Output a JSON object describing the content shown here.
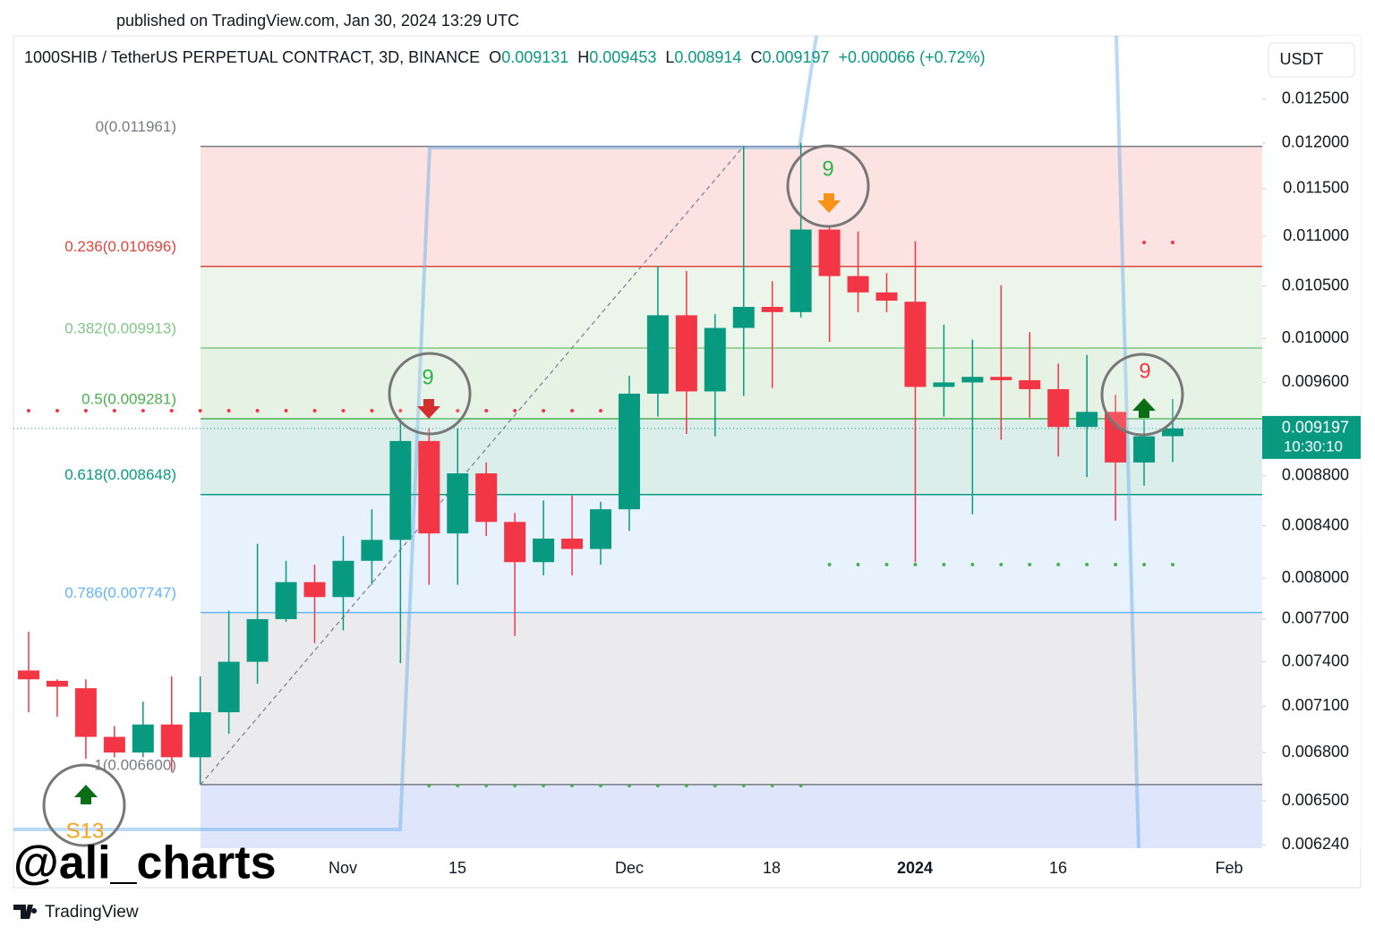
{
  "published": "published on TradingView.com, Jan 30, 2024 13:29 UTC",
  "chart_data": {
    "type": "candlestick",
    "title": "1000SHIB / TetherUS PERPETUAL CONTRACT, 3D, BINANCE",
    "ohlc_letters": [
      "O",
      "H",
      "L",
      "C"
    ],
    "change": "+0.000066 (+0.72%)",
    "currency": "USDT",
    "countdown": "10:30:10",
    "log_scale": true,
    "up_color": "#089981",
    "down_color": "#f23645",
    "ylim": [
      0.00622,
      0.01326
    ],
    "yticks": [
      {
        "value": 0.0125,
        "label": "0.012500"
      },
      {
        "value": 0.012,
        "label": "0.012000"
      },
      {
        "value": 0.0115,
        "label": "0.011500"
      },
      {
        "value": 0.011,
        "label": "0.011000"
      },
      {
        "value": 0.0105,
        "label": "0.010500"
      },
      {
        "value": 0.01,
        "label": "0.010000"
      },
      {
        "value": 0.0096,
        "label": "0.009600"
      },
      {
        "value": 0.0088,
        "label": "0.008800"
      },
      {
        "value": 0.0084,
        "label": "0.008400"
      },
      {
        "value": 0.008,
        "label": "0.008000"
      },
      {
        "value": 0.0077,
        "label": "0.007700"
      },
      {
        "value": 0.0074,
        "label": "0.007400"
      },
      {
        "value": 0.0071,
        "label": "0.007100"
      },
      {
        "value": 0.0068,
        "label": "0.006800"
      },
      {
        "value": 0.0065,
        "label": "0.006500"
      },
      {
        "value": 0.00624,
        "label": "0.006240"
      }
    ],
    "xtick_labels": [
      "Nov",
      "15",
      "Dec",
      "18",
      "2024",
      "16",
      "Feb"
    ],
    "open": [
      0.00734,
      0.00727,
      0.00722,
      0.0069,
      0.0068,
      0.00698,
      0.00677,
      0.00706,
      0.0074,
      0.0077,
      0.00797,
      0.00786,
      0.00813,
      0.00829,
      0.00909,
      0.00834,
      0.00882,
      0.00843,
      0.00812,
      0.0083,
      0.00822,
      0.00853,
      0.0095,
      0.01022,
      0.00952,
      0.0101,
      0.0103,
      0.01025,
      0.01107,
      0.0106,
      0.01044,
      0.01035,
      0.00956,
      0.0096,
      0.00965,
      0.00962,
      0.00954,
      0.00921,
      0.00934,
      0.00891,
      0.009131
    ],
    "high": [
      0.00761,
      0.00728,
      0.00728,
      0.00697,
      0.00713,
      0.0073,
      0.0073,
      0.00776,
      0.00826,
      0.00813,
      0.0081,
      0.00832,
      0.00853,
      0.00928,
      0.0092,
      0.0092,
      0.00891,
      0.0085,
      0.0086,
      0.00864,
      0.00859,
      0.00966,
      0.0107,
      0.01065,
      0.01023,
      0.011961,
      0.01055,
      0.012,
      0.01109,
      0.01105,
      0.01063,
      0.01095,
      0.01013,
      0.00999,
      0.01051,
      0.01006,
      0.00977,
      0.00985,
      0.00949,
      0.00927,
      0.009453
    ],
    "low": [
      0.00706,
      0.00703,
      0.00676,
      0.00677,
      0.00677,
      0.00668,
      0.0066,
      0.00692,
      0.00725,
      0.00768,
      0.00753,
      0.00762,
      0.00795,
      0.00739,
      0.00795,
      0.00795,
      0.00832,
      0.00758,
      0.00802,
      0.00802,
      0.0081,
      0.00836,
      0.0093,
      0.00915,
      0.00913,
      0.00948,
      0.00955,
      0.0102,
      0.00997,
      0.01025,
      0.01025,
      0.00812,
      0.0093,
      0.00849,
      0.0091,
      0.00929,
      0.00896,
      0.00879,
      0.00844,
      0.00872,
      0.008914
    ],
    "close": [
      0.00728,
      0.00723,
      0.0069,
      0.0068,
      0.00698,
      0.00677,
      0.00706,
      0.0074,
      0.0077,
      0.00797,
      0.00786,
      0.00813,
      0.00829,
      0.00909,
      0.00834,
      0.00882,
      0.00843,
      0.00812,
      0.0083,
      0.00822,
      0.00853,
      0.0095,
      0.01022,
      0.00952,
      0.0101,
      0.0103,
      0.01025,
      0.01107,
      0.0106,
      0.01044,
      0.01036,
      0.00956,
      0.0096,
      0.00965,
      0.00962,
      0.00954,
      0.00921,
      0.00934,
      0.00891,
      0.00913,
      0.009197
    ],
    "fib_levels": [
      {
        "label": "0(0.011961)",
        "value": 0.011961,
        "color": "#787b86",
        "band": "#fde2e2"
      },
      {
        "label": "0.236(0.010696)",
        "value": 0.010696,
        "color": "#e0453b",
        "band": "#ebf5e9"
      },
      {
        "label": "0.382(0.009913)",
        "value": 0.009913,
        "color": "#81c784",
        "band": "#e6f3e4"
      },
      {
        "label": "0.5(0.009281)",
        "value": 0.009281,
        "color": "#4caf50",
        "band": "#dbeeea"
      },
      {
        "label": "0.618(0.008648)",
        "value": 0.008648,
        "color": "#089981",
        "band": "#e7f2fc"
      },
      {
        "label": "0.786(0.007747)",
        "value": 0.007747,
        "color": "#64b5f6",
        "band": "#ebebed"
      },
      {
        "label": "1(0.006600)",
        "value": 0.0066,
        "color": "#787b86",
        "band": "#dfe6fb"
      }
    ],
    "annotations": [
      "9",
      "9",
      "9",
      "S13"
    ],
    "watermark": "@ali_charts",
    "brand": "TradingView"
  }
}
